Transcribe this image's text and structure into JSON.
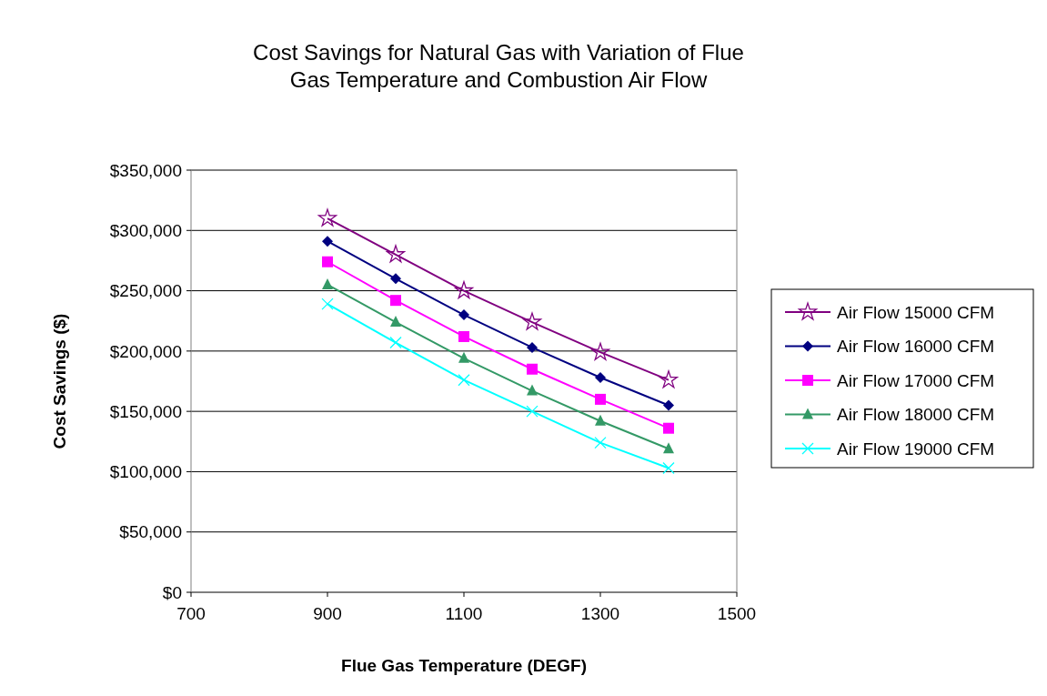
{
  "chart_data": {
    "type": "line",
    "title": "Cost Savings for Natural Gas with Variation of Flue Gas Temperature and Combustion Air Flow",
    "xlabel": "Flue Gas Temperature (DEGF)",
    "ylabel": "Cost Savings ($)",
    "x": [
      900,
      1000,
      1100,
      1200,
      1300,
      1400
    ],
    "xlim": [
      700,
      1500
    ],
    "xticks": [
      700,
      900,
      1100,
      1300,
      1500
    ],
    "ylim": [
      0,
      350000
    ],
    "yticks": [
      {
        "value": 0,
        "label": "$0"
      },
      {
        "value": 50000,
        "label": "$50,000"
      },
      {
        "value": 100000,
        "label": "$100,000"
      },
      {
        "value": 150000,
        "label": "$150,000"
      },
      {
        "value": 200000,
        "label": "$200,000"
      },
      {
        "value": 250000,
        "label": "$250,000"
      },
      {
        "value": 300000,
        "label": "$300,000"
      },
      {
        "value": 350000,
        "label": "$350,000"
      }
    ],
    "grid": "y",
    "legend": "right",
    "series": [
      {
        "name": "Air Flow 15000 CFM",
        "color": "#800080",
        "marker": "star",
        "values": [
          310000,
          280000,
          250000,
          224000,
          199000,
          176000
        ]
      },
      {
        "name": "Air Flow 16000 CFM",
        "color": "#000080",
        "marker": "diamond",
        "values": [
          291000,
          260000,
          230000,
          203000,
          178000,
          155000
        ]
      },
      {
        "name": "Air Flow 17000 CFM",
        "color": "#ff00ff",
        "marker": "square",
        "values": [
          274000,
          242000,
          212000,
          185000,
          160000,
          136000
        ]
      },
      {
        "name": "Air Flow 18000 CFM",
        "color": "#339966",
        "marker": "triangle",
        "values": [
          255000,
          224000,
          194000,
          167000,
          142000,
          119000
        ]
      },
      {
        "name": "Air Flow 19000 CFM",
        "color": "#00ffff",
        "marker": "cross",
        "values": [
          239000,
          207000,
          176000,
          150000,
          124000,
          103000
        ]
      }
    ]
  }
}
